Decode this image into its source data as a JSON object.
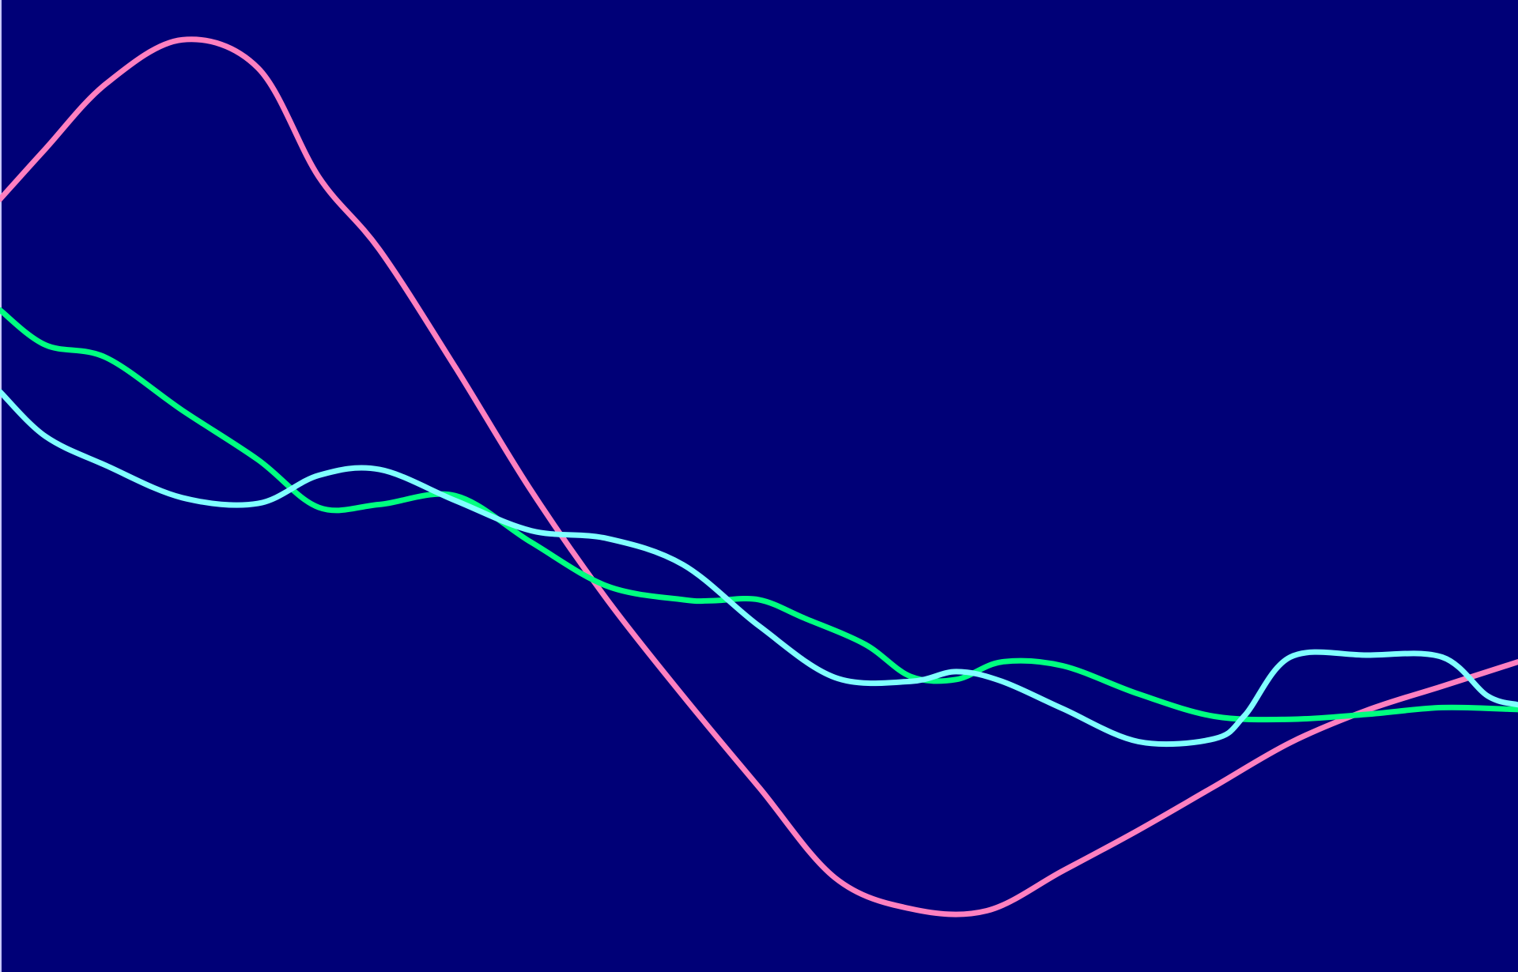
{
  "chart_data": {
    "type": "line",
    "title": "",
    "xlabel": "",
    "ylabel": "",
    "grid": false,
    "legend": "none",
    "background": "#000077",
    "xlim": [
      0,
      100
    ],
    "ylim": [
      0,
      100
    ],
    "series": [
      {
        "color": "#ff80c0",
        "x": [
          0,
          3,
          7,
          12,
          17,
          21,
          25,
          30,
          35,
          40,
          45,
          50,
          55,
          60,
          65,
          70,
          75,
          80,
          85,
          90,
          95,
          100
        ],
        "y": [
          79.5,
          84.7,
          91.4,
          95.9,
          93.0,
          81.8,
          74.3,
          62.2,
          49.5,
          38.3,
          28.4,
          19.0,
          9.7,
          6.5,
          6.3,
          10.4,
          14.6,
          19.1,
          23.6,
          26.9,
          29.4,
          31.9
        ]
      },
      {
        "color": "#00ff80",
        "x": [
          0,
          3,
          7,
          12,
          17,
          21,
          25,
          30,
          35,
          40,
          45,
          47,
          50,
          53,
          57,
          60,
          63,
          66,
          70,
          75,
          80,
          85,
          90,
          95,
          100
        ],
        "y": [
          68.1,
          64.5,
          63.2,
          57.8,
          52.7,
          47.8,
          48.1,
          49.0,
          44.2,
          39.7,
          38.3,
          38.2,
          38.3,
          36.4,
          33.7,
          30.4,
          30.1,
          31.9,
          31.5,
          28.6,
          26.3,
          26.0,
          26.5,
          27.2,
          27.0
        ]
      },
      {
        "color": "#80ffff",
        "x": [
          0,
          3,
          7,
          12,
          17,
          21,
          25,
          30,
          35,
          40,
          45,
          50,
          55,
          60,
          63,
          66,
          70,
          75,
          80,
          82,
          85,
          90,
          95,
          98,
          100
        ],
        "y": [
          59.7,
          55.1,
          52.1,
          48.8,
          48.2,
          51.1,
          51.7,
          48.5,
          45.4,
          44.6,
          41.9,
          35.6,
          30.3,
          29.9,
          30.9,
          29.9,
          27.1,
          23.7,
          24.0,
          26.4,
          32.4,
          32.6,
          32.4,
          28.4,
          27.5
        ]
      }
    ]
  }
}
